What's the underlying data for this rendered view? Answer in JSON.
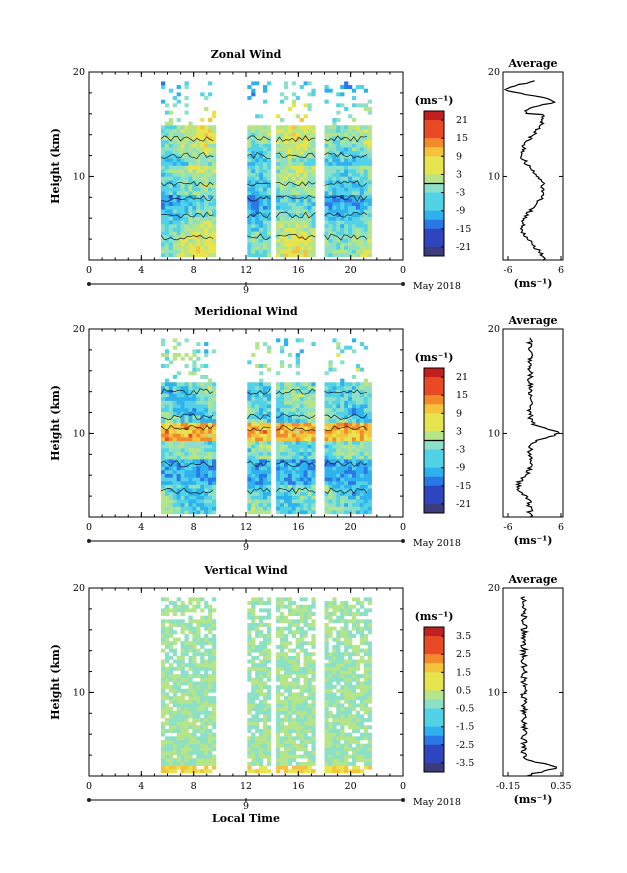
{
  "chart_data": [
    {
      "type": "heatmap",
      "title": "Zonal Wind",
      "ylabel": "Height (km)",
      "y_ticks": [
        "10",
        "20"
      ],
      "ylim": [
        2,
        20
      ],
      "x_ticks": [
        "0",
        "4",
        "8",
        "12",
        "16",
        "20",
        "0"
      ],
      "xlim": [
        0,
        24
      ],
      "date_axis_label": "9",
      "date_label": "May 2018",
      "colorbar": {
        "unit": "(ms⁻¹)",
        "ticks": [
          "21",
          "15",
          "9",
          "3",
          "-3",
          "-9",
          "-15",
          "-21"
        ],
        "range": [
          -24,
          24
        ],
        "zero_line": true
      },
      "contours": true,
      "data_intervals_hours": [
        [
          5.5,
          9.6
        ],
        [
          12.1,
          13.9
        ],
        [
          14.3,
          17.3
        ],
        [
          18.0,
          21.4
        ]
      ],
      "average": {
        "title": "Average",
        "x_ticks": [
          "-6",
          "6"
        ],
        "xlim": [
          -6,
          6
        ],
        "y_ticks": [
          "10",
          "20"
        ],
        "xlabel": "(ms⁻¹)"
      }
    },
    {
      "type": "heatmap",
      "title": "Meridional Wind",
      "ylabel": "Height (km)",
      "y_ticks": [
        "10",
        "20"
      ],
      "ylim": [
        2,
        20
      ],
      "x_ticks": [
        "0",
        "4",
        "8",
        "12",
        "16",
        "20",
        "0"
      ],
      "xlim": [
        0,
        24
      ],
      "date_axis_label": "9",
      "date_label": "May 2018",
      "colorbar": {
        "unit": "(ms⁻¹)",
        "ticks": [
          "21",
          "15",
          "9",
          "3",
          "-3",
          "-9",
          "-15",
          "-21"
        ],
        "range": [
          -24,
          24
        ],
        "zero_line": true
      },
      "contours": true,
      "data_intervals_hours": [
        [
          5.5,
          9.6
        ],
        [
          12.1,
          13.9
        ],
        [
          14.3,
          17.3
        ],
        [
          18.0,
          21.4
        ]
      ],
      "average": {
        "title": "Average",
        "x_ticks": [
          "-6",
          "6"
        ],
        "xlim": [
          -6,
          6
        ],
        "y_ticks": [
          "10",
          "20"
        ],
        "xlabel": "(ms⁻¹)"
      }
    },
    {
      "type": "heatmap",
      "title": "Vertical Wind",
      "ylabel": "Height (km)",
      "y_ticks": [
        "10",
        "20"
      ],
      "ylim": [
        2,
        20
      ],
      "x_ticks": [
        "0",
        "4",
        "8",
        "12",
        "16",
        "20",
        "0"
      ],
      "xlim": [
        0,
        24
      ],
      "date_axis_label": "9",
      "date_label": "May 2018",
      "xlabel": "Local Time",
      "colorbar": {
        "unit": "(ms⁻¹)",
        "ticks": [
          "3.5",
          "2.5",
          "1.5",
          "0.5",
          "-0.5",
          "-1.5",
          "-2.5",
          "-3.5"
        ],
        "range": [
          -4,
          4
        ],
        "zero_line": false
      },
      "contours": false,
      "data_intervals_hours": [
        [
          5.5,
          9.6
        ],
        [
          12.1,
          13.9
        ],
        [
          14.3,
          17.3
        ],
        [
          18.0,
          21.4
        ]
      ],
      "average": {
        "title": "Average",
        "x_ticks": [
          "-0.15",
          "0.35"
        ],
        "xlim": [
          -0.15,
          0.35
        ],
        "y_ticks": [
          "10",
          "20"
        ],
        "xlabel": "(ms⁻¹)"
      }
    }
  ]
}
